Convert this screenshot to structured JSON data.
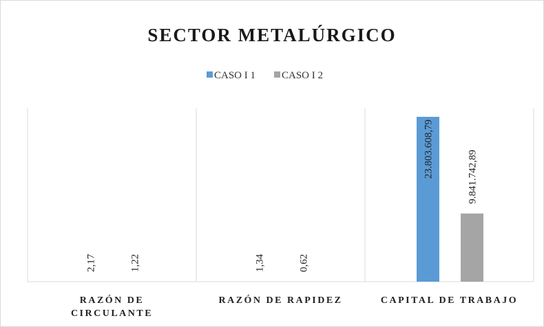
{
  "chart_data": {
    "type": "bar",
    "title": "SECTOR METALÚRGICO",
    "categories": [
      "RAZÓN DE CIRCULANTE",
      "RAZÓN DE RAPIDEZ",
      "CAPITAL DE TRABAJO"
    ],
    "series": [
      {
        "name": "CASO I 1",
        "color": "#5b9bd5",
        "values": [
          2.17,
          1.34,
          23803608.79
        ],
        "value_labels": [
          "2,17",
          "1,34",
          "23.803.608,79"
        ]
      },
      {
        "name": "CASO I 2",
        "color": "#a5a5a5",
        "values": [
          1.22,
          0.62,
          9841742.89
        ],
        "value_labels": [
          "1,22",
          "0,62",
          "9.841.742,89"
        ]
      }
    ],
    "ylim": [
      0,
      25000000
    ]
  }
}
